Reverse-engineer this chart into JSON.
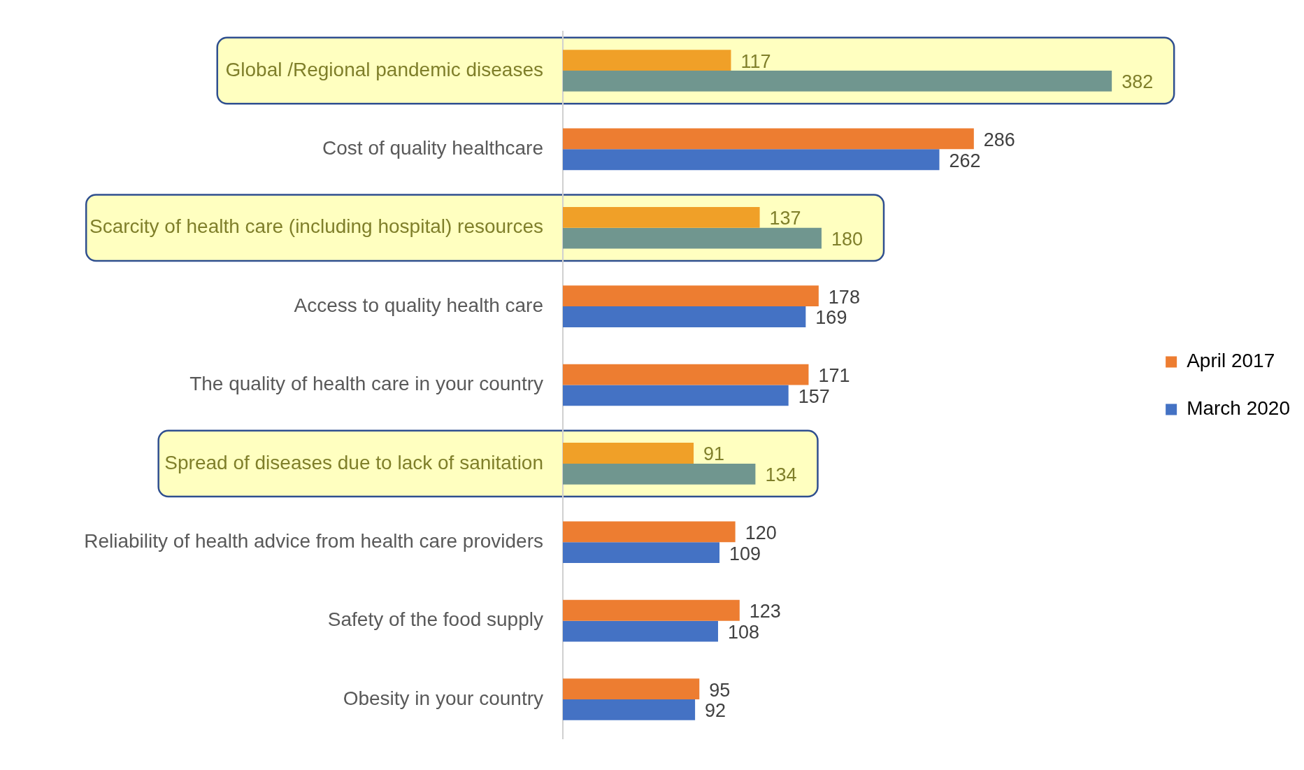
{
  "chart_data": {
    "type": "bar",
    "orientation": "horizontal",
    "categories": [
      "Global /Regional pandemic diseases",
      "Cost of quality healthcare",
      "Scarcity of health care (including hospital) resources",
      "Access to quality health care",
      "The quality of health care in your country",
      "Spread of diseases due to lack of sanitation",
      "Reliability of health advice from health care providers",
      "Safety of the food supply",
      "Obesity in your country"
    ],
    "series": [
      {
        "name": "April 2017",
        "color": "#ed7d31",
        "colors": [
          "#f0a028",
          "#ed7d31",
          "#f0a028",
          "#ed7d31",
          "#ed7d31",
          "#f0a028",
          "#ed7d31",
          "#ed7d31",
          "#ed7d31"
        ],
        "values": [
          117,
          286,
          137,
          178,
          171,
          91,
          120,
          123,
          95
        ]
      },
      {
        "name": "March 2020",
        "color": "#4472c4",
        "colors": [
          "#70968f",
          "#4472c4",
          "#70968f",
          "#4472c4",
          "#4472c4",
          "#70968f",
          "#4472c4",
          "#4472c4",
          "#4472c4"
        ],
        "values": [
          382,
          262,
          180,
          169,
          157,
          134,
          109,
          108,
          92
        ]
      }
    ],
    "bands": [
      {
        "axis": "y",
        "from": "Global /Regional pandemic diseases",
        "to": "Global /Regional pandemic diseases",
        "color": "#ffffc0"
      },
      {
        "axis": "y",
        "from": "Scarcity of health care (including hospital) resources",
        "to": "Scarcity of health care (including hospital) resources",
        "color": "#ffffc0"
      },
      {
        "axis": "y",
        "from": "Spread of diseases due to lack of sanitation",
        "to": "Spread of diseases due to lack of sanitation",
        "color": "#ffffc0"
      }
    ],
    "data_labels": true,
    "grid": false,
    "legend": "right"
  }
}
